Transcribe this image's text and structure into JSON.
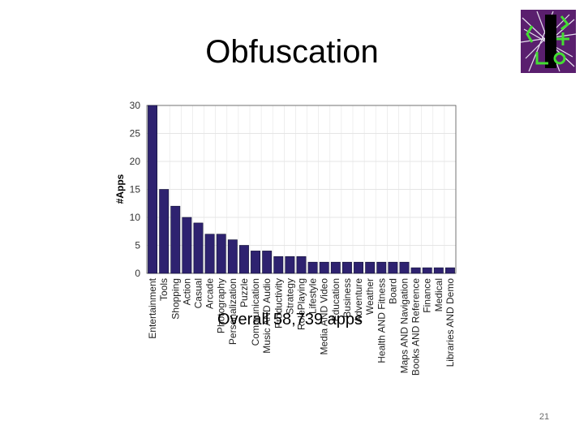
{
  "slide": {
    "title": "Obfuscation",
    "overlay_text": "Overall 58,739 apps",
    "page_number": "21"
  },
  "colors": {
    "bar_fill": "#2e2270",
    "bar_stroke": "#111133",
    "logo_bg": "#5a1f6e",
    "logo_accent": "#44dd33"
  },
  "logo": {
    "icon": "purple-network-logo-icon"
  },
  "chart_data": {
    "type": "bar",
    "title": "",
    "xlabel": "",
    "ylabel": "#Apps",
    "ylim": [
      0,
      30
    ],
    "yticks": [
      0,
      5,
      10,
      15,
      20,
      25,
      30
    ],
    "grid": true,
    "categories": [
      "Entertainment",
      "Tools",
      "Shopping",
      "Action",
      "Casual",
      "Arcade",
      "Photography",
      "Personalization",
      "Puzzle",
      "Communication",
      "Music AND Audio",
      "Productivity",
      "Strategy",
      "RolePlaying",
      "Lifestyle",
      "Media AND Video",
      "Education",
      "Business",
      "Adventure",
      "Weather",
      "Health AND Fitness",
      "Board",
      "Maps AND Navigation",
      "Books AND Reference",
      "Finance",
      "Medical",
      "Libraries AND Demo"
    ],
    "values": [
      30,
      15,
      12,
      10,
      9,
      7,
      7,
      6,
      5,
      4,
      4,
      3,
      3,
      3,
      2,
      2,
      2,
      2,
      2,
      2,
      2,
      2,
      2,
      1,
      1,
      1,
      1
    ]
  }
}
